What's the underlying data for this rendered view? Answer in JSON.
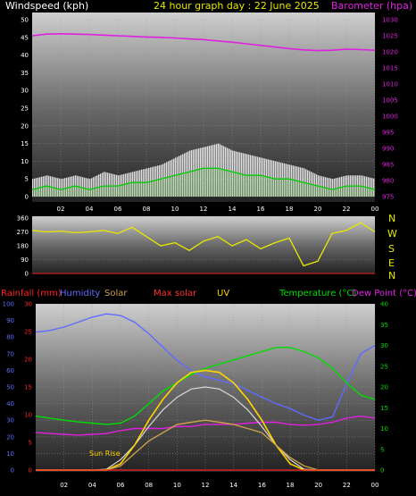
{
  "header": {
    "wind_title": "Windspeed (kph)",
    "graph_title": "24 hour graph day : 22 June 2025",
    "baro_title": "Barometer (hpa)"
  },
  "compass": [
    "N",
    "W",
    "S",
    "E",
    "N"
  ],
  "legend": {
    "rainfall": "Rainfall (mm)",
    "humidity": "Humidity",
    "solar": "Solar",
    "max_solar": "Max solar",
    "uv": "UV",
    "temperature": "Temperature (°C)",
    "dew_point": "Dew Point (°C)"
  },
  "annotation": {
    "sun_rise": "Sun Rise"
  },
  "colors": {
    "wind": "#e8e8e8",
    "gust": "#ffffff",
    "wind_avg": "#00cc00",
    "barometer": "#e020e0",
    "direction": "#e8e800",
    "humidity": "#5f6bff",
    "solar": "#c9a14a",
    "max_solar": "#ff3030",
    "uv": "#ffd400",
    "temperature": "#00dd00",
    "dew_point": "#e020e0",
    "rainfall": "#ff2020"
  },
  "chart_data": [
    {
      "type": "area",
      "name": "wind_barometer",
      "x": [
        0,
        1,
        2,
        3,
        4,
        5,
        6,
        7,
        8,
        9,
        10,
        11,
        12,
        13,
        14,
        15,
        16,
        17,
        18,
        19,
        20,
        21,
        22,
        23,
        24
      ],
      "xticks": [
        "02",
        "04",
        "06",
        "08",
        "10",
        "12",
        "14",
        "16",
        "18",
        "20",
        "22",
        "00"
      ],
      "left_axis": {
        "label": "Windspeed (kph)",
        "ylim": [
          0,
          50
        ],
        "ticks": [
          "0",
          "5",
          "10",
          "15",
          "20",
          "25",
          "30",
          "35",
          "40",
          "45",
          "50"
        ]
      },
      "right_axis": {
        "label": "Barometer (hpa)",
        "ylim": [
          975,
          1030
        ],
        "ticks": [
          "975",
          "980",
          "985",
          "990",
          "995",
          "1000",
          "1005",
          "1010",
          "1015",
          "1020",
          "1025",
          "1030"
        ]
      },
      "series": [
        {
          "key": "gust",
          "axis": "left",
          "values": [
            5,
            6,
            5,
            6,
            5,
            7,
            6,
            7,
            8,
            9,
            11,
            13,
            14,
            15,
            13,
            12,
            11,
            10,
            9,
            8,
            6,
            5,
            6,
            6,
            5
          ]
        },
        {
          "key": "wind",
          "axis": "left",
          "values": [
            2,
            3,
            2,
            3,
            2,
            3,
            3,
            4,
            4,
            5,
            6,
            7,
            8,
            8,
            7,
            6,
            6,
            5,
            5,
            4,
            3,
            2,
            3,
            3,
            2
          ]
        },
        {
          "key": "barometer",
          "axis": "right",
          "values": [
            1025,
            1025.5,
            1025.6,
            1025.5,
            1025.4,
            1025.2,
            1025,
            1024.8,
            1024.6,
            1024.5,
            1024.3,
            1024,
            1023.8,
            1023.4,
            1023,
            1022.5,
            1022,
            1021.5,
            1021,
            1020.6,
            1020.4,
            1020.5,
            1020.8,
            1020.7,
            1020.5
          ]
        }
      ]
    },
    {
      "type": "line",
      "name": "wind_direction",
      "x": [
        0,
        1,
        2,
        3,
        4,
        5,
        6,
        7,
        8,
        9,
        10,
        11,
        12,
        13,
        14,
        15,
        16,
        17,
        18,
        19,
        20,
        21,
        22,
        23,
        24
      ],
      "ylim": [
        0,
        360
      ],
      "ticks": [
        "0",
        "90",
        "180",
        "270",
        "360"
      ],
      "values": [
        280,
        270,
        275,
        265,
        270,
        280,
        260,
        300,
        240,
        180,
        200,
        150,
        210,
        240,
        180,
        220,
        160,
        200,
        230,
        50,
        80,
        260,
        280,
        330,
        270
      ]
    },
    {
      "type": "line",
      "name": "temp_solar",
      "x": [
        0,
        1,
        2,
        3,
        4,
        5,
        6,
        7,
        8,
        9,
        10,
        11,
        12,
        13,
        14,
        15,
        16,
        17,
        18,
        19,
        20,
        21,
        22,
        23,
        24
      ],
      "xticks": [
        "02",
        "04",
        "06",
        "08",
        "10",
        "12",
        "14",
        "16",
        "18",
        "20",
        "22",
        "00"
      ],
      "axes": {
        "rain": {
          "label": "Rainfall (mm)",
          "ylim": [
            0,
            30
          ],
          "ticks": [
            "0",
            "5",
            "10",
            "15",
            "20",
            "25",
            "30"
          ]
        },
        "humidity": {
          "label": "Humidity",
          "ylim": [
            0,
            100
          ],
          "ticks": [
            "0",
            "10",
            "20",
            "30",
            "40",
            "50",
            "60",
            "70",
            "80",
            "90",
            "100"
          ]
        },
        "temperature": {
          "label": "Temperature (°C)",
          "ylim": [
            0,
            40
          ],
          "ticks": [
            "0",
            "5",
            "10",
            "15",
            "20",
            "25",
            "30",
            "35",
            "40"
          ]
        }
      },
      "series": [
        {
          "key": "humidity",
          "axis": "humidity",
          "values": [
            83,
            84,
            86,
            89,
            92,
            94,
            93,
            89,
            82,
            74,
            66,
            60,
            56,
            54,
            52,
            48,
            44,
            40,
            37,
            33,
            30,
            32,
            52,
            70,
            75
          ]
        },
        {
          "key": "temperature",
          "axis": "temperature",
          "values": [
            13,
            12.5,
            12,
            11.6,
            11.3,
            11,
            11.3,
            13,
            16,
            19,
            21,
            23,
            24.5,
            25.5,
            26.5,
            27.5,
            28.5,
            29.5,
            29.5,
            28.5,
            27,
            24.5,
            21,
            18,
            17
          ]
        },
        {
          "key": "dew_point",
          "axis": "temperature",
          "values": [
            9,
            8.8,
            8.6,
            8.4,
            8.6,
            8.8,
            9.5,
            10,
            10,
            10,
            10.5,
            10.5,
            11,
            11,
            11,
            11.3,
            11.5,
            11.5,
            11,
            10.8,
            11,
            11.5,
            12.5,
            13,
            12.5
          ]
        },
        {
          "key": "max_solar",
          "axis": "temperature",
          "values": [
            0,
            0,
            0,
            0,
            0,
            0.2,
            2.5,
            6,
            10.5,
            14.5,
            17.5,
            19.5,
            20,
            19.5,
            17.5,
            14.5,
            10.5,
            6,
            2.5,
            0.2,
            0,
            0,
            0,
            0,
            0
          ]
        },
        {
          "key": "uv",
          "axis": "temperature",
          "values": [
            0,
            0,
            0,
            0,
            0,
            0,
            1.5,
            6,
            12,
            17,
            21,
            23.5,
            24,
            23.5,
            21,
            17,
            12,
            6,
            1.5,
            0,
            0,
            0,
            0,
            0,
            0
          ]
        },
        {
          "key": "solar",
          "axis": "temperature",
          "values": [
            0,
            0,
            0,
            0,
            0,
            0,
            1,
            4,
            7,
            9,
            11,
            11.5,
            12,
            11.5,
            11,
            10,
            9,
            6,
            3,
            1,
            0,
            0,
            0,
            0,
            0
          ]
        }
      ]
    }
  ]
}
